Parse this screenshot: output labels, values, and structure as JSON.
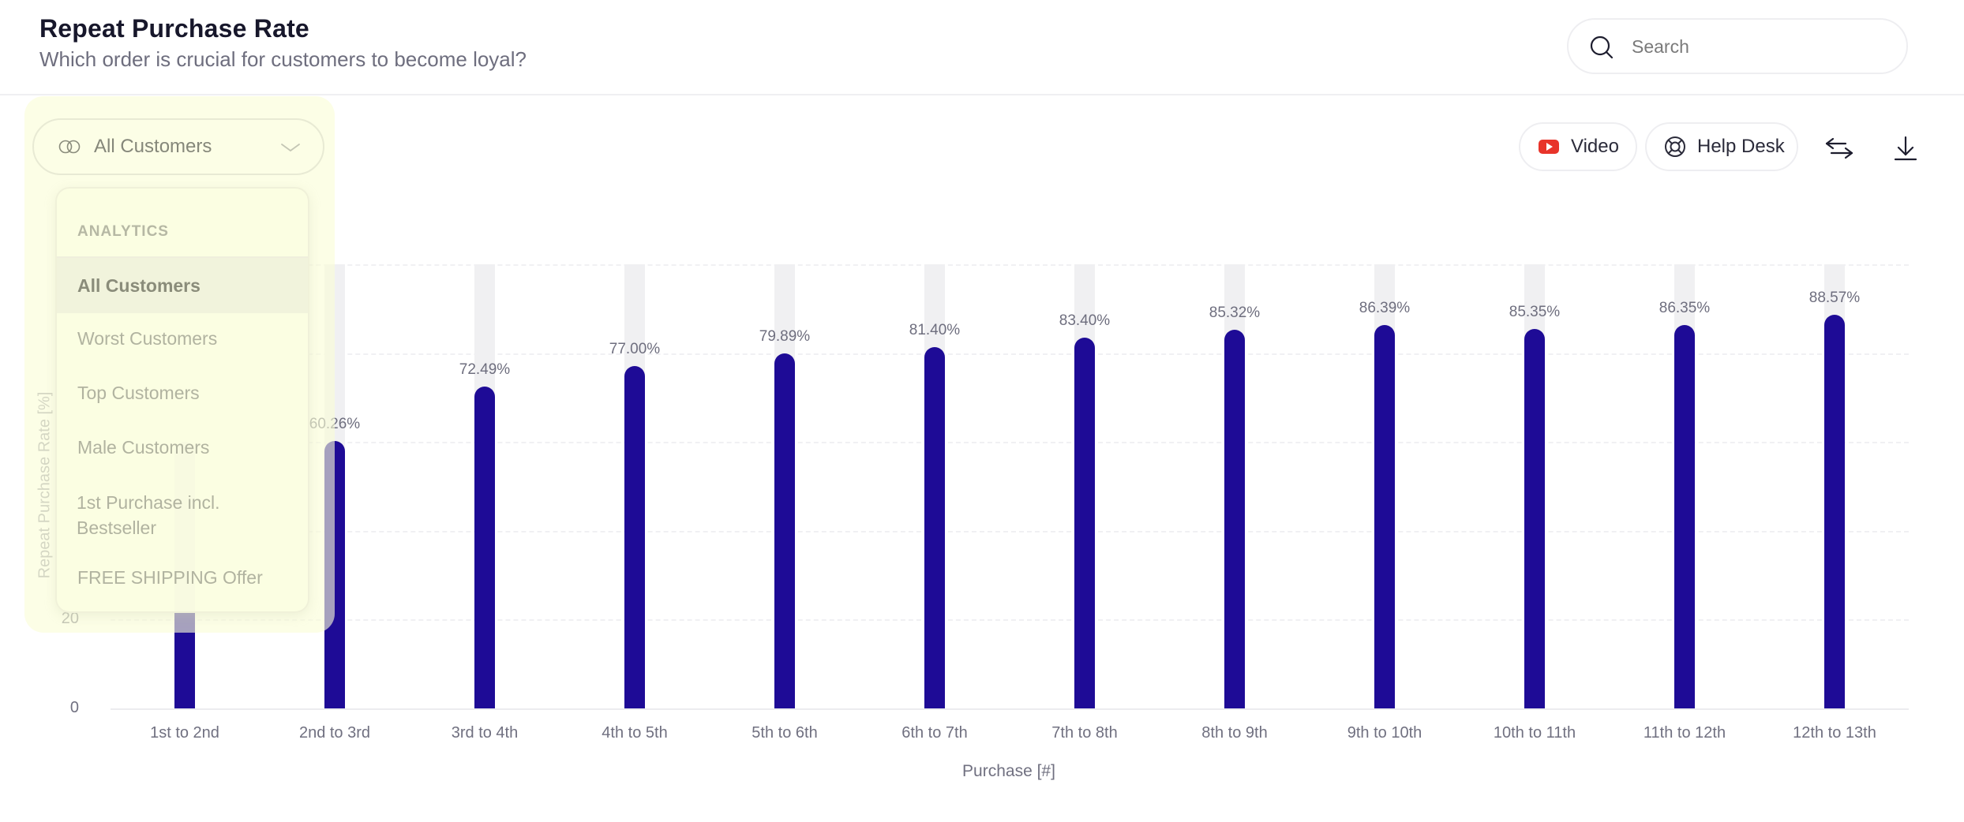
{
  "header": {
    "title": "Repeat Purchase Rate",
    "subtitle": "Which order is crucial for customers to become loyal?",
    "search": {
      "placeholder": "Search",
      "value": "",
      "icon": "search-icon"
    }
  },
  "toolbar": {
    "video_label": "Video",
    "video_icon": "youtube-play-icon",
    "help_label": "Help Desk",
    "help_icon": "lifebuoy-icon",
    "swap_icon": "swap-arrows-icon",
    "download_icon": "download-icon"
  },
  "segment_selector": {
    "selected": "All Customers",
    "icon": "linked-rings-icon",
    "menu": {
      "header": "ANALYTICS",
      "items": [
        {
          "label": "All Customers",
          "active": true
        },
        {
          "label": "Worst Customers",
          "active": false
        },
        {
          "label": "Top Customers",
          "active": false
        },
        {
          "label": "Male Customers",
          "active": false
        },
        {
          "label": "1st Purchase incl. Bestseller",
          "active": false
        },
        {
          "label": "FREE SHIPPING Offer",
          "active": false
        }
      ]
    }
  },
  "colors": {
    "bar": "#1e0b96",
    "bar_background": "#f0f0f2",
    "overlay": "#fafed7",
    "video_red": "#e8342a"
  },
  "chart_data": {
    "type": "bar",
    "title": "Repeat Purchase Rate",
    "subtitle": "Which order is crucial for customers to become loyal?",
    "xlabel": "Purchase [#]",
    "ylabel": "Repeat Purchase Rate [%]",
    "ylim": [
      0,
      100
    ],
    "yticks_visible": [
      "0",
      "20"
    ],
    "ytick_step": 20,
    "grid": true,
    "categories": [
      "1st to 2nd",
      "2nd to 3rd",
      "3rd to 4th",
      "4th to 5th",
      "5th to 6th",
      "6th to 7th",
      "7th to 8th",
      "8th to 9th",
      "9th to 10th",
      "10th to 11th",
      "11th to 12th",
      "12th to 13th"
    ],
    "values": [
      null,
      60.26,
      72.49,
      77.0,
      79.89,
      81.4,
      83.4,
      85.32,
      86.39,
      85.35,
      86.35,
      88.57
    ],
    "labels": [
      "",
      "60.26%",
      "72.49%",
      "77.00%",
      "79.89%",
      "81.40%",
      "83.40%",
      "85.32%",
      "86.39%",
      "85.35%",
      "86.35%",
      "88.57%"
    ]
  }
}
